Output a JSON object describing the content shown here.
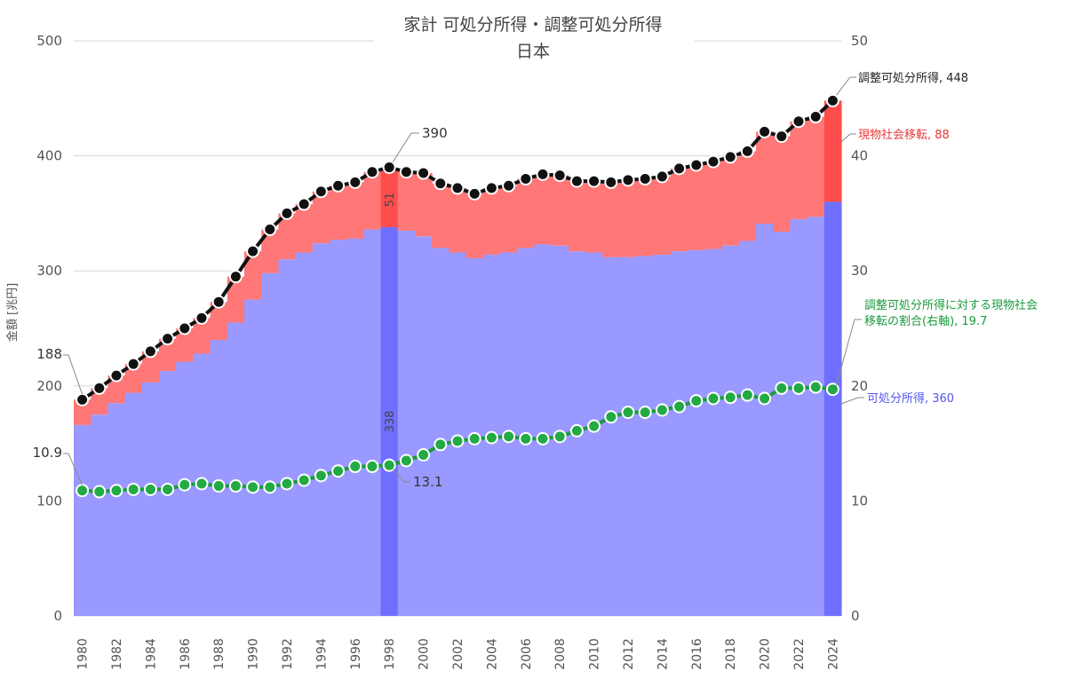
{
  "chart_data": {
    "type": "area",
    "title": "家計 可処分所得・調整可処分所得",
    "subtitle": "日本",
    "ylabel": "金額 [兆円]",
    "ylim": [
      0,
      500
    ],
    "y2lim": [
      0,
      50
    ],
    "yticks": [
      "0",
      "100",
      "200",
      "300",
      "400",
      "500"
    ],
    "y2ticks": [
      "0",
      "10",
      "20",
      "30",
      "40",
      "50"
    ],
    "x": [
      1980,
      1981,
      1982,
      1983,
      1984,
      1985,
      1986,
      1987,
      1988,
      1989,
      1990,
      1991,
      1992,
      1993,
      1994,
      1995,
      1996,
      1997,
      1998,
      1999,
      2000,
      2001,
      2002,
      2003,
      2004,
      2005,
      2006,
      2007,
      2008,
      2009,
      2010,
      2011,
      2012,
      2013,
      2014,
      2015,
      2016,
      2017,
      2018,
      2019,
      2020,
      2021,
      2022,
      2023,
      2024
    ],
    "xticks": [
      "1980",
      "1982",
      "1984",
      "1986",
      "1988",
      "1990",
      "1992",
      "1994",
      "1996",
      "1998",
      "2000",
      "2002",
      "2004",
      "2006",
      "2008",
      "2010",
      "2012",
      "2014",
      "2016",
      "2018",
      "2020",
      "2022",
      "2024"
    ],
    "series": [
      {
        "name": "可処分所得",
        "axis": "left",
        "kind": "stacked-area",
        "color": "#9999ff",
        "values": [
          166,
          175,
          185,
          194,
          203,
          213,
          221,
          228,
          240,
          255,
          275,
          298,
          310,
          316,
          324,
          327,
          328,
          336,
          338,
          335,
          330,
          320,
          316,
          311,
          314,
          316,
          320,
          323,
          322,
          317,
          316,
          312,
          312,
          313,
          314,
          317,
          318,
          319,
          322,
          326,
          341,
          334,
          345,
          347,
          360
        ]
      },
      {
        "name": "現物社会移転",
        "axis": "left",
        "kind": "stacked-area",
        "color": "#ff7777",
        "values": [
          22,
          23,
          24,
          25,
          27,
          28,
          29,
          31,
          33,
          40,
          42,
          38,
          40,
          42,
          45,
          47,
          49,
          50,
          51,
          51,
          55,
          56,
          56,
          56,
          58,
          58,
          60,
          61,
          61,
          61,
          62,
          65,
          67,
          67,
          68,
          72,
          74,
          76,
          77,
          78,
          80,
          83,
          85,
          87,
          88
        ]
      },
      {
        "name": "調整可処分所得",
        "axis": "left",
        "kind": "line",
        "color": "#111111",
        "values": [
          188,
          198,
          209,
          219,
          230,
          241,
          250,
          259,
          273,
          295,
          317,
          336,
          350,
          358,
          369,
          374,
          377,
          386,
          390,
          386,
          385,
          376,
          372,
          367,
          372,
          374,
          380,
          384,
          383,
          378,
          378,
          377,
          379,
          380,
          382,
          389,
          392,
          395,
          399,
          404,
          421,
          417,
          430,
          434,
          448
        ]
      },
      {
        "name": "調整可処分所得に対する現物社会移転の割合(右軸)",
        "axis": "right",
        "kind": "line",
        "color": "#22aa44",
        "values": [
          10.9,
          10.8,
          10.9,
          11.0,
          11.0,
          11.0,
          11.4,
          11.5,
          11.3,
          11.3,
          11.2,
          11.2,
          11.5,
          11.8,
          12.2,
          12.6,
          13.0,
          13.0,
          13.1,
          13.5,
          14.0,
          14.9,
          15.2,
          15.4,
          15.5,
          15.6,
          15.4,
          15.4,
          15.6,
          16.1,
          16.5,
          17.3,
          17.7,
          17.7,
          17.9,
          18.2,
          18.7,
          18.9,
          19.0,
          19.2,
          18.9,
          19.8,
          19.8,
          19.9,
          19.7
        ]
      }
    ],
    "highlight_years": [
      1998,
      2024
    ],
    "annotations": {
      "adj_first": "188",
      "adj_1998": "390",
      "adj_last": "調整可処分所得, 448",
      "transfer_1998": "51",
      "transfer_last": "現物社会移転, 88",
      "disp_1998": "338",
      "disp_last": "可処分所得, 360",
      "ratio_first": "10.9",
      "ratio_1998": "13.1",
      "ratio_last_line1": "調整可処分所得に対する現物社会",
      "ratio_last_line2": "移転の割合(右軸), 19.7"
    }
  }
}
